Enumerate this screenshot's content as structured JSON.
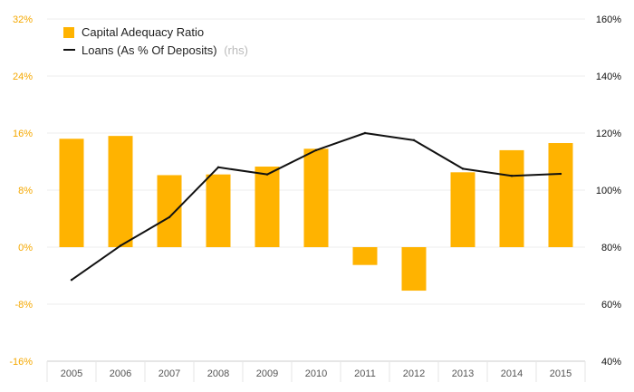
{
  "chart_data": {
    "type": "bar+line",
    "categories": [
      "2005",
      "2006",
      "2007",
      "2008",
      "2009",
      "2010",
      "2011",
      "2012",
      "2013",
      "2014",
      "2015"
    ],
    "series": [
      {
        "name": "Capital Adequacy Ratio",
        "type": "bar",
        "axis": "left",
        "color": "#ffb300",
        "values": [
          15.2,
          15.6,
          10.1,
          10.2,
          11.3,
          13.8,
          -2.5,
          -6.1,
          10.5,
          13.6,
          14.6
        ]
      },
      {
        "name": "Loans (As % Of Deposits)",
        "name_suffix": "(rhs)",
        "type": "line",
        "axis": "right",
        "color": "#111111",
        "values": [
          68.5,
          80.5,
          90.5,
          108.0,
          105.5,
          114.0,
          120.0,
          117.5,
          107.5,
          105.0,
          105.7
        ]
      }
    ],
    "y_left": {
      "ylim": [
        -16,
        32
      ],
      "ticks": [
        "32%",
        "24%",
        "16%",
        "8%",
        "0%",
        "-8%",
        "-16%"
      ],
      "color": "#f5a800"
    },
    "y_right": {
      "ylim": [
        40,
        160
      ],
      "ticks": [
        "160%",
        "140%",
        "120%",
        "100%",
        "80%",
        "60%",
        "40%"
      ]
    },
    "grid": true,
    "legend_position": "top-left"
  }
}
